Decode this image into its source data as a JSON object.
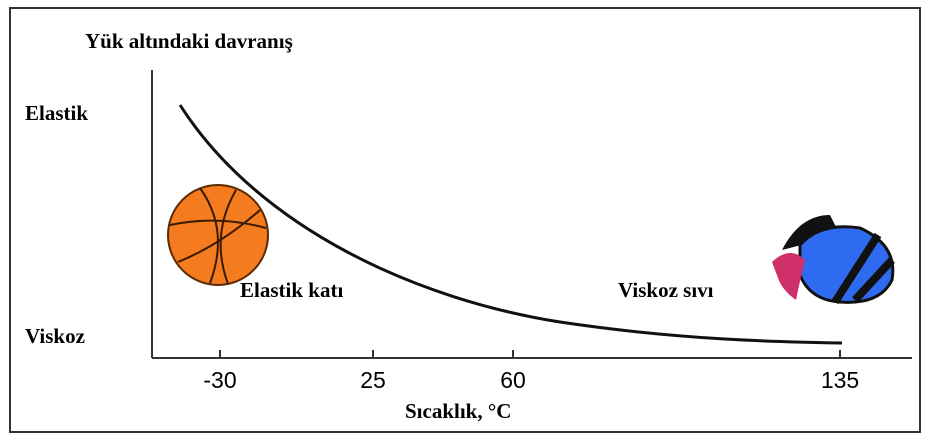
{
  "header": {
    "title": "Yük altındaki davranış"
  },
  "y_axis": {
    "labels": [
      "Elastik",
      "Viskoz"
    ]
  },
  "x_axis": {
    "title": "Sıcaklık, °C",
    "ticks": [
      "-30",
      "25",
      "60",
      "135"
    ]
  },
  "annotations": [
    "Elastik katı",
    "Viskoz sıvı"
  ]
}
